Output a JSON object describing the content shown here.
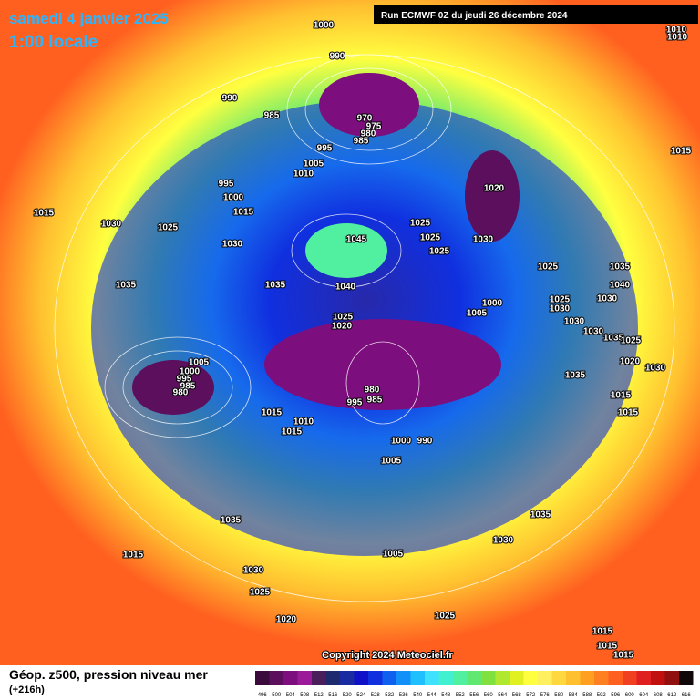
{
  "header": {
    "title": "samedi 4 janvier 2025",
    "subtitle": "1:00 locale",
    "run": "Run ECMWF 0Z du jeudi 26 décembre 2024"
  },
  "copyright": "Copyright 2024 Meteociel.fr",
  "footer": {
    "title": "Géop. z500, pression niveau mer",
    "lead": "(+216h)"
  },
  "colorbar": {
    "ticks": [
      496,
      500,
      504,
      508,
      512,
      516,
      520,
      524,
      528,
      532,
      536,
      540,
      544,
      548,
      552,
      556,
      560,
      564,
      568,
      572,
      576,
      580,
      584,
      588,
      592,
      596,
      600,
      604,
      608,
      612,
      616
    ],
    "colors": [
      "#3a0a3a",
      "#5c0f5c",
      "#7d0e7d",
      "#9a1a9a",
      "#4a1e5a",
      "#1e2a6e",
      "#1a2aa0",
      "#1010c8",
      "#1030e0",
      "#1060f0",
      "#1090f8",
      "#20c0ff",
      "#40e0ff",
      "#40f0d0",
      "#50f0a0",
      "#60e870",
      "#80e040",
      "#b0e830",
      "#e0f020",
      "#ffff40",
      "#fff060",
      "#ffd840",
      "#ffc030",
      "#ffa020",
      "#ff8020",
      "#ff6020",
      "#f04020",
      "#e02020",
      "#c01010",
      "#901010",
      "#100808"
    ]
  },
  "isobar_labels": [
    1000,
    990,
    990,
    985,
    970,
    975,
    980,
    985,
    995,
    1005,
    1010,
    995,
    1000,
    1015,
    1015,
    1030,
    1025,
    1030,
    1045,
    1025,
    1025,
    1025,
    1030,
    1020,
    1035,
    1035,
    1040,
    1025,
    1020,
    1000,
    1005,
    1025,
    1035,
    1040,
    1025,
    1030,
    1030,
    1030,
    1030,
    1035,
    1025,
    1020,
    1030,
    1035,
    1015,
    1015,
    1015,
    1005,
    1000,
    995,
    985,
    980,
    980,
    985,
    995,
    1015,
    1010,
    1015,
    1000,
    990,
    1005,
    1035,
    1035,
    1030,
    1015,
    1030,
    1025,
    1005,
    1025,
    1020,
    1015,
    1015,
    1015,
    1010,
    1010
  ]
}
